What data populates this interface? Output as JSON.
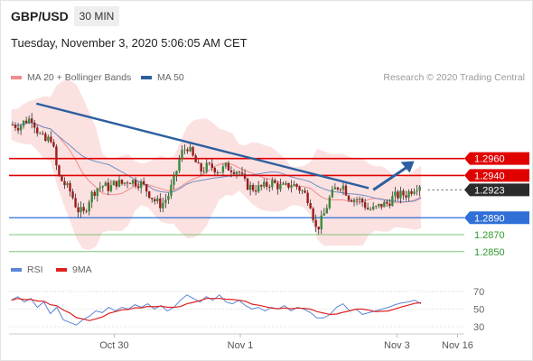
{
  "header": {
    "symbol": "GBP/USD",
    "timeframe": "30 MIN",
    "datetime": "Tuesday, November 3, 2020 5:06:05 AM CET",
    "copyright": "Research © 2020 Trading Central"
  },
  "legend": {
    "price": [
      {
        "label": "MA 20 + Bollinger Bands",
        "color": "#f28b8b"
      },
      {
        "label": "MA 50",
        "color": "#2c5f9e"
      }
    ],
    "rsi": [
      {
        "label": "RSI",
        "color": "#5b86d6"
      },
      {
        "label": "9MA",
        "color": "#e02020"
      }
    ]
  },
  "chart_data": {
    "type": "candlestick",
    "ylim": [
      1.2838,
      1.3045
    ],
    "x_labels": [
      "Oct 30",
      "Nov 1",
      "Nov 3",
      "Nov 16"
    ],
    "levels": [
      {
        "value": "1.2960",
        "price": 1.296,
        "kind": "resistance"
      },
      {
        "value": "1.2940",
        "price": 1.294,
        "kind": "resistance"
      },
      {
        "value": "1.2923",
        "price": 1.2923,
        "kind": "current"
      },
      {
        "value": "1.2890",
        "price": 1.289,
        "kind": "pivot"
      },
      {
        "value": "1.2870",
        "price": 1.287,
        "kind": "support"
      },
      {
        "value": "1.2850",
        "price": 1.285,
        "kind": "support"
      }
    ],
    "price_path": [
      1.3,
      1.2998,
      1.3005,
      1.3008,
      1.299,
      1.298,
      1.2985,
      1.294,
      1.293,
      1.292,
      1.29,
      1.2895,
      1.2915,
      1.2925,
      1.2928,
      1.2925,
      1.2932,
      1.293,
      1.2935,
      1.2932,
      1.293,
      1.292,
      1.291,
      1.2905,
      1.2915,
      1.2935,
      1.2965,
      1.2975,
      1.296,
      1.2945,
      1.295,
      1.295,
      1.2945,
      1.295,
      1.2948,
      1.2945,
      1.293,
      1.2925,
      1.2925,
      1.2927,
      1.2932,
      1.2928,
      1.2925,
      1.293,
      1.2927,
      1.292,
      1.291,
      1.2875,
      1.289,
      1.2912,
      1.2925,
      1.293,
      1.2915,
      1.2912,
      1.291,
      1.29,
      1.29,
      1.2905,
      1.2907,
      1.2915,
      1.2917,
      1.2918,
      1.2925,
      1.293
    ],
    "trendline": [
      [
        1.3025,
        0.06
      ],
      [
        1.2925,
        0.79
      ]
    ],
    "forecast_arrow": [
      [
        1.2923,
        0.8
      ],
      [
        1.2957,
        0.89
      ]
    ],
    "rsi_ylim": [
      20,
      80
    ],
    "rsi_ticks": [
      70,
      50,
      30
    ],
    "rsi_path": [
      60,
      64,
      58,
      62,
      52,
      58,
      45,
      52,
      38,
      35,
      32,
      38,
      42,
      48,
      46,
      52,
      48,
      52,
      50,
      55,
      52,
      56,
      50,
      54,
      48,
      52,
      60,
      66,
      62,
      58,
      64,
      60,
      66,
      58,
      56,
      60,
      54,
      50,
      52,
      48,
      52,
      50,
      54,
      48,
      52,
      50,
      46,
      40,
      40,
      44,
      52,
      56,
      48,
      50,
      44,
      46,
      48,
      50,
      52,
      55,
      57,
      58,
      60,
      56
    ]
  }
}
